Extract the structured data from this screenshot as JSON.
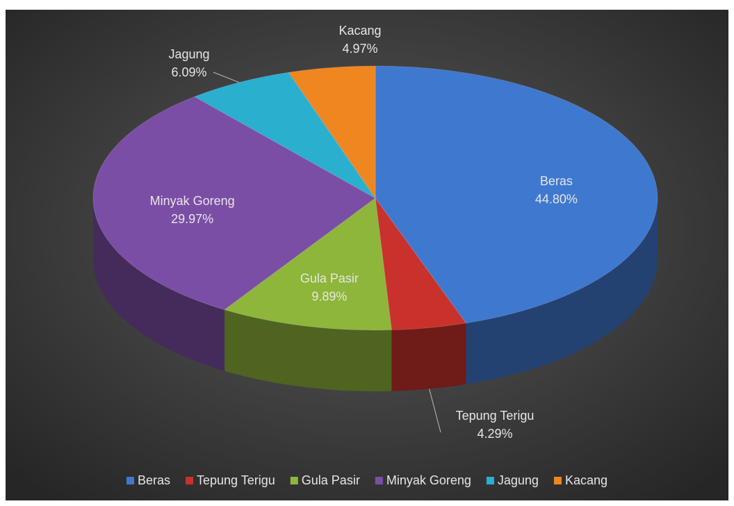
{
  "chart_data": {
    "type": "pie3d",
    "categories": [
      "Beras",
      "Tepung Terigu",
      "Gula Pasir",
      "Minyak Goreng",
      "Jagung",
      "Kacang"
    ],
    "values": [
      44.8,
      4.29,
      9.89,
      29.97,
      6.09,
      4.97
    ],
    "value_labels": [
      "44.80%",
      "4.29%",
      "9.89%",
      "29.97%",
      "6.09%",
      "4.97%"
    ],
    "colors": [
      "#3f78cf",
      "#c9312c",
      "#8db63a",
      "#7b4ea6",
      "#2aafcf",
      "#f0861f"
    ],
    "legend": "bottom"
  }
}
